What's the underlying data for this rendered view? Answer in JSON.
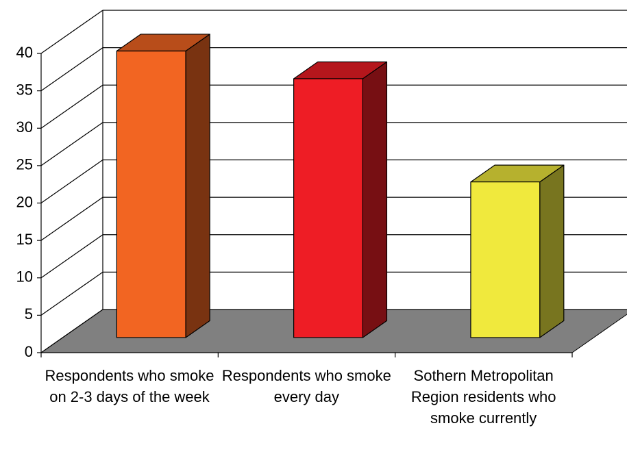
{
  "chart_data": {
    "type": "bar3d",
    "categories": [
      "Respondents who smoke on 2-3 days of the week",
      "Respondents who smoke every day",
      "Sothern Metropolitan Region residents who smoke currently"
    ],
    "values": [
      38.3,
      34.6,
      20.8
    ],
    "colors": [
      "#f26522",
      "#ee1d25",
      "#f0e93d"
    ],
    "ylim": [
      0,
      40
    ],
    "yticks": [
      0,
      5,
      10,
      15,
      20,
      25,
      30,
      35,
      40
    ],
    "grid": true
  }
}
